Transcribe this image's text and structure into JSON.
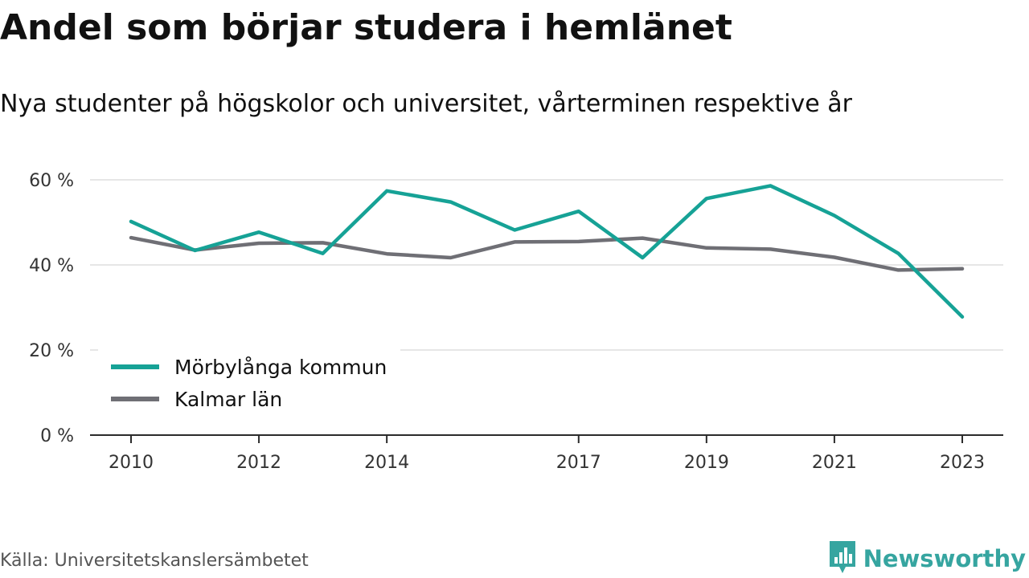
{
  "title": "Andel som börjar studera i hemlänet",
  "subtitle": "Nya studenter på högskolor och universitet, vårterminen respektive år",
  "source": "Källa: Universitetskanslersämbetet",
  "brand": {
    "name": "Newsworthy",
    "icon": "newsworthy-logo-icon",
    "color": "#36a5a0"
  },
  "chart_data": {
    "type": "line",
    "title": "Andel som börjar studera i hemlänet",
    "subtitle": "Nya studenter på högskolor och universitet, vårterminen respektive år",
    "xlabel": "",
    "ylabel": "",
    "x": [
      2010,
      2011,
      2012,
      2013,
      2014,
      2015,
      2016,
      2017,
      2018,
      2019,
      2020,
      2021,
      2022,
      2023
    ],
    "x_ticks": [
      "2010",
      "2012",
      "2014",
      "2017",
      "2019",
      "2021",
      "2023"
    ],
    "y_ticks": [
      "0 %",
      "20 %",
      "40 %",
      "60 %"
    ],
    "y_tick_values": [
      0,
      20,
      40,
      60
    ],
    "ylim": [
      0,
      60
    ],
    "grid": true,
    "legend_position": "bottom-left",
    "series": [
      {
        "name": "Mörbylånga kommun",
        "color": "#16a296",
        "values": [
          50.2,
          43.4,
          47.7,
          42.7,
          57.4,
          54.8,
          48.2,
          52.6,
          41.7,
          55.6,
          58.6,
          51.6,
          42.7,
          27.8
        ]
      },
      {
        "name": "Kalmar län",
        "color": "#6f6f75",
        "values": [
          46.4,
          43.5,
          45.1,
          45.2,
          42.6,
          41.7,
          45.4,
          45.5,
          46.3,
          44.0,
          43.7,
          41.8,
          38.8,
          39.1
        ]
      }
    ]
  }
}
